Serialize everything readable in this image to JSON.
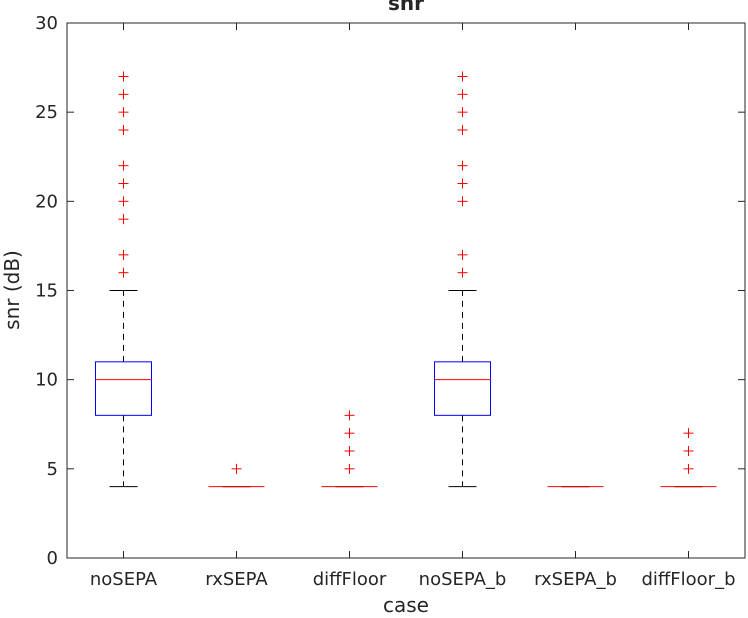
{
  "chart_data": {
    "type": "boxplot",
    "title": "snr",
    "xlabel": "case",
    "ylabel": "snr (dB)",
    "ylim": [
      0,
      30
    ],
    "yticks": [
      0,
      5,
      10,
      15,
      20,
      25,
      30
    ],
    "categories": [
      "noSEPA",
      "rxSEPA",
      "diffFloor",
      "noSEPA_b",
      "rxSEPA_b",
      "diffFloor_b"
    ],
    "boxes": [
      {
        "category": "noSEPA",
        "whisker_low": 4,
        "q1": 8,
        "median": 10,
        "q3": 11,
        "whisker_high": 15,
        "outliers": [
          16,
          17,
          19,
          20,
          21,
          22,
          24,
          25,
          26,
          27
        ]
      },
      {
        "category": "rxSEPA",
        "whisker_low": 4,
        "q1": 4,
        "median": 4,
        "q3": 4,
        "whisker_high": 4,
        "outliers": [
          5
        ]
      },
      {
        "category": "diffFloor",
        "whisker_low": 4,
        "q1": 4,
        "median": 4,
        "q3": 4,
        "whisker_high": 4,
        "outliers": [
          5,
          6,
          7,
          8
        ]
      },
      {
        "category": "noSEPA_b",
        "whisker_low": 4,
        "q1": 8,
        "median": 10,
        "q3": 11,
        "whisker_high": 15,
        "outliers": [
          16,
          17,
          20,
          21,
          22,
          24,
          25,
          26,
          27
        ]
      },
      {
        "category": "rxSEPA_b",
        "whisker_low": 4,
        "q1": 4,
        "median": 4,
        "q3": 4,
        "whisker_high": 4,
        "outliers": []
      },
      {
        "category": "diffFloor_b",
        "whisker_low": 4,
        "q1": 4,
        "median": 4,
        "q3": 4,
        "whisker_high": 4,
        "outliers": [
          5,
          6,
          7
        ]
      }
    ],
    "grid": false,
    "legend": "none",
    "colors": {
      "box": "#0000ff",
      "median": "#ff0000",
      "whisker": "#000000",
      "outlier": "#ff0000",
      "axis": "#262626"
    }
  }
}
